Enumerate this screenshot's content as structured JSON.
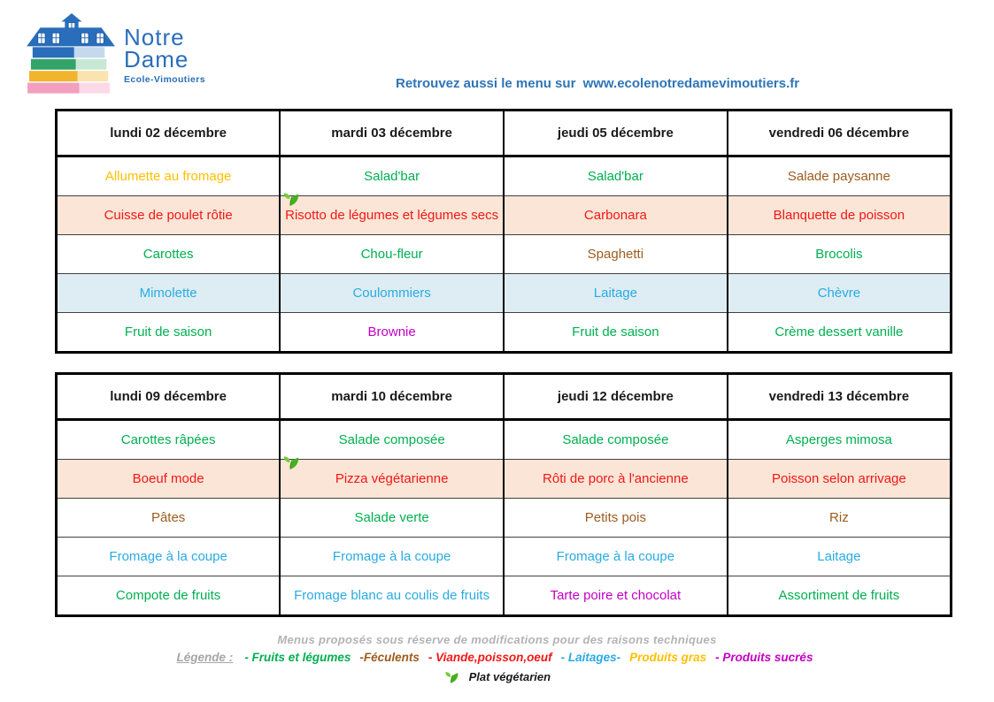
{
  "palette": {
    "text": {
      "green": "#00b050",
      "brown": "#9c5c1e",
      "red": "#f21818",
      "blue": "#29abe2",
      "gold": "#ffc000",
      "magenta": "#c400c4",
      "black": "#1a1a1a"
    },
    "row_bg": {
      "white": "#ffffff",
      "peach": "#fbe5d6",
      "lightblue": "#deedf3"
    },
    "accent_blue": "#2e75b6",
    "logo_blue": "#2a6ebb",
    "note_gray": "#b3b3b3",
    "legend_gray": "#a6a6a6"
  },
  "logo": {
    "name_line1": "Notre",
    "name_line2": "Dame",
    "subtitle": "Ecole-Vimoutiers"
  },
  "header": {
    "prefix": "Retrouvez aussi le menu sur",
    "url": "www.ecolenotredamevimoutiers.fr"
  },
  "weeks": [
    {
      "days": [
        "lundi 02 décembre",
        "mardi 03 décembre",
        "jeudi 05 décembre",
        "vendredi 06 décembre"
      ],
      "rows": [
        {
          "course": "entree",
          "bg": "white",
          "cells": [
            {
              "text": "Allumette au fromage",
              "color": "gold"
            },
            {
              "text": "Salad'bar",
              "color": "green"
            },
            {
              "text": "Salad'bar",
              "color": "green"
            },
            {
              "text": "Salade paysanne",
              "color": "brown"
            }
          ]
        },
        {
          "course": "plat-principal",
          "bg": "peach",
          "cells": [
            {
              "text": "Cuisse de poulet rôtie",
              "color": "red"
            },
            {
              "text": "Risotto de légumes et légumes secs",
              "color": "red",
              "vegetarian": true
            },
            {
              "text": "Carbonara",
              "color": "red"
            },
            {
              "text": "Blanquette de poisson",
              "color": "red"
            }
          ]
        },
        {
          "course": "accompagnement",
          "bg": "white",
          "cells": [
            {
              "text": "Carottes",
              "color": "green"
            },
            {
              "text": "Chou-fleur",
              "color": "green"
            },
            {
              "text": "Spaghetti",
              "color": "brown"
            },
            {
              "text": "Brocolis",
              "color": "green"
            }
          ]
        },
        {
          "course": "fromage",
          "bg": "lightblue",
          "cells": [
            {
              "text": "Mimolette",
              "color": "blue"
            },
            {
              "text": "Coulommiers",
              "color": "blue"
            },
            {
              "text": "Laitage",
              "color": "blue"
            },
            {
              "text": "Chèvre",
              "color": "blue"
            }
          ]
        },
        {
          "course": "dessert",
          "bg": "white",
          "cells": [
            {
              "text": "Fruit de saison",
              "color": "green"
            },
            {
              "text": "Brownie",
              "color": "magenta"
            },
            {
              "text": "Fruit de saison",
              "color": "green"
            },
            {
              "text": "Crème dessert vanille",
              "color": "green"
            }
          ]
        }
      ]
    },
    {
      "days": [
        "lundi 09 décembre",
        "mardi 10 décembre",
        "jeudi 12 décembre",
        "vendredi 13 décembre"
      ],
      "rows": [
        {
          "course": "entree",
          "bg": "white",
          "cells": [
            {
              "text": "Carottes râpées",
              "color": "green"
            },
            {
              "text": "Salade composée",
              "color": "green"
            },
            {
              "text": "Salade composée",
              "color": "green"
            },
            {
              "text": "Asperges mimosa",
              "color": "green"
            }
          ]
        },
        {
          "course": "plat-principal",
          "bg": "peach",
          "cells": [
            {
              "text": "Boeuf mode",
              "color": "red"
            },
            {
              "text": "Pizza végétarienne",
              "color": "red",
              "vegetarian": true
            },
            {
              "text": "Rôti de porc à l'ancienne",
              "color": "red"
            },
            {
              "text": "Poisson selon arrivage",
              "color": "red"
            }
          ]
        },
        {
          "course": "accompagnement",
          "bg": "white",
          "cells": [
            {
              "text": "Pâtes",
              "color": "brown"
            },
            {
              "text": "Salade verte",
              "color": "green"
            },
            {
              "text": "Petits pois",
              "color": "brown"
            },
            {
              "text": "Riz",
              "color": "brown"
            }
          ]
        },
        {
          "course": "fromage",
          "bg": "white",
          "cells": [
            {
              "text": "Fromage à la coupe",
              "color": "blue"
            },
            {
              "text": "Fromage à la coupe",
              "color": "blue"
            },
            {
              "text": "Fromage à la coupe",
              "color": "blue"
            },
            {
              "text": "Laitage",
              "color": "blue"
            }
          ]
        },
        {
          "course": "dessert",
          "bg": "white",
          "cells": [
            {
              "text": "Compote de fruits",
              "color": "green"
            },
            {
              "text": "Fromage blanc au coulis de fruits",
              "color": "blue"
            },
            {
              "text": "Tarte poire et chocolat",
              "color": "magenta"
            },
            {
              "text": "Assortiment de fruits",
              "color": "green"
            }
          ]
        }
      ]
    }
  ],
  "footer": {
    "note": "Menus proposés sous réserve de modifications pour des raisons techniques",
    "legend_label": "Légende :",
    "legend": [
      {
        "text": "- Fruits et légumes",
        "color": "green"
      },
      {
        "text": "-Féculents",
        "color": "brown"
      },
      {
        "text": "- Viande,poisson,oeuf",
        "color": "red"
      },
      {
        "text": "- Laitages-",
        "color": "blue"
      },
      {
        "text": "Produits gras",
        "color": "gold"
      },
      {
        "text": "- Produits sucrés",
        "color": "magenta"
      }
    ],
    "vegetarian_label": "Plat végétarien"
  }
}
